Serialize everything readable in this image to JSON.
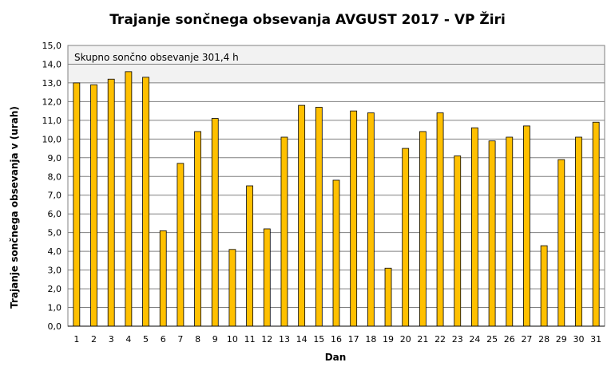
{
  "chart_data": {
    "type": "bar",
    "title": "Trajanje  sončnega obsevanja  AVGUST 2017 - VP Žiri",
    "xlabel": "Dan",
    "ylabel": "Trajanje  sončnega obsevanja  v (urah)",
    "annotation": "Skupno sončno obsevanje  301,4 h",
    "categories": [
      "1",
      "2",
      "3",
      "4",
      "5",
      "6",
      "7",
      "8",
      "9",
      "10",
      "11",
      "12",
      "13",
      "14",
      "15",
      "16",
      "17",
      "18",
      "19",
      "20",
      "21",
      "22",
      "23",
      "24",
      "25",
      "26",
      "27",
      "28",
      "29",
      "30",
      "31"
    ],
    "values": [
      13.0,
      12.9,
      13.2,
      13.6,
      13.3,
      5.1,
      8.7,
      10.4,
      11.1,
      4.1,
      7.5,
      5.2,
      10.1,
      11.8,
      11.7,
      7.8,
      11.5,
      11.4,
      3.1,
      9.5,
      10.4,
      11.4,
      9.1,
      10.6,
      9.9,
      10.1,
      10.7,
      4.3,
      8.9,
      10.1,
      10.9
    ],
    "yticks": [
      "0,0",
      "1,0",
      "2,0",
      "3,0",
      "4,0",
      "5,0",
      "6,0",
      "7,0",
      "8,0",
      "9,0",
      "10,0",
      "11,0",
      "12,0",
      "13,0",
      "14,0",
      "15,0"
    ],
    "ylim": [
      0,
      15
    ],
    "grid": true,
    "colors": {
      "bar_fill": "#FFC000",
      "bar_stroke": "#000000",
      "plot_bg_top": "#F2F2F2",
      "grid": "#808080"
    }
  }
}
